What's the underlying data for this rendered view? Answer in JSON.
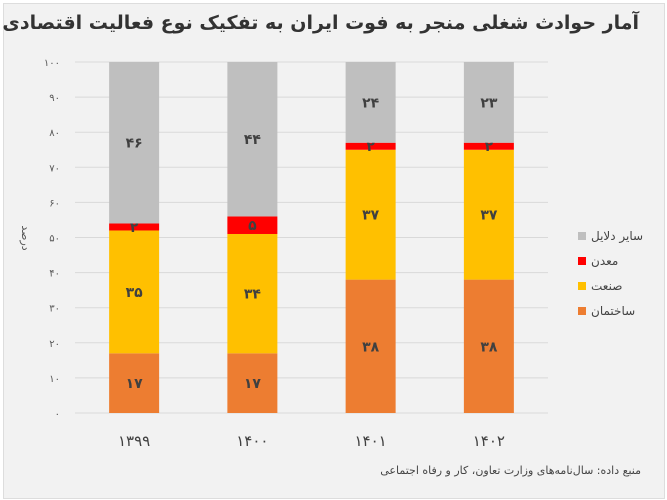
{
  "chart_data": {
    "type": "bar",
    "stacked": true,
    "title": "آمار حوادث شغلی منجر به فوت ایران به تفکیک نوع فعالیت اقتصادی",
    "ylabel": "درصد",
    "xlabel": "",
    "ylim": [
      0,
      100
    ],
    "yticks": [
      "۰",
      "۱۰",
      "۲۰",
      "۳۰",
      "۴۰",
      "۵۰",
      "۶۰",
      "۷۰",
      "۸۰",
      "۹۰",
      "۱۰۰"
    ],
    "categories": [
      "۱۳۹۹",
      "۱۴۰۰",
      "۱۴۰۱",
      "۱۴۰۲"
    ],
    "series": [
      {
        "name": "ساختمان",
        "color": "#ed7d31",
        "values": [
          17,
          17,
          38,
          38
        ],
        "labels": [
          "۱۷",
          "۱۷",
          "۳۸",
          "۳۸"
        ]
      },
      {
        "name": "صنعت",
        "color": "#ffc000",
        "values": [
          35,
          34,
          37,
          37
        ],
        "labels": [
          "۳۵",
          "۳۴",
          "۳۷",
          "۳۷"
        ]
      },
      {
        "name": "معدن",
        "color": "#ff0000",
        "values": [
          2,
          5,
          2,
          2
        ],
        "labels": [
          "۲",
          "۵",
          "۲",
          "۲"
        ]
      },
      {
        "name": "سایر دلایل",
        "color": "#bfbfbf",
        "values": [
          46,
          44,
          24,
          23
        ],
        "labels": [
          "۴۶",
          "۴۴",
          "۲۴",
          "۲۳"
        ]
      }
    ],
    "legend_position": "right",
    "grid": true
  },
  "source": "منبع داده: سال‌نامه‌های وزارت تعاون، کار و رفاه اجتماعی"
}
